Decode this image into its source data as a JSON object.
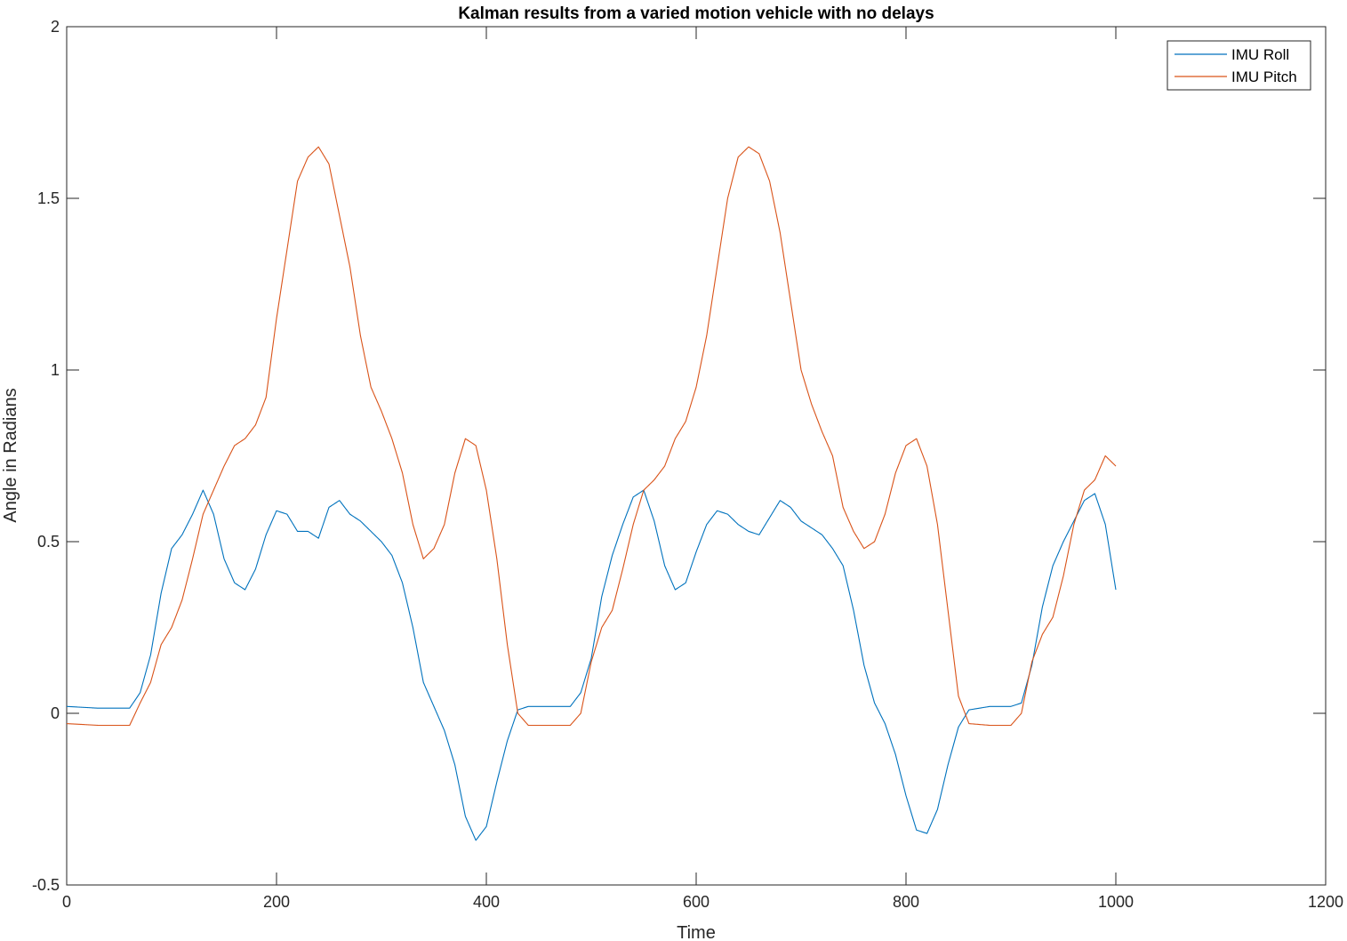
{
  "chart_data": {
    "type": "line",
    "title": "Kalman results from a varied motion vehicle with no delays",
    "xlabel": "Time",
    "ylabel": "Angle in Radians",
    "xlim": [
      0,
      1200
    ],
    "ylim": [
      -0.5,
      2
    ],
    "xticks": [
      "0",
      "200",
      "400",
      "600",
      "800",
      "1000",
      "1200"
    ],
    "yticks": [
      "-0.5",
      "0",
      "0.5",
      "1",
      "1.5",
      "2"
    ],
    "grid": false,
    "legend": "top-right",
    "series": [
      {
        "name": "IMU Roll",
        "color": "#0072BD",
        "points": [
          [
            0,
            0.02
          ],
          [
            30,
            0.015
          ],
          [
            60,
            0.015
          ],
          [
            70,
            0.06
          ],
          [
            80,
            0.17
          ],
          [
            90,
            0.35
          ],
          [
            100,
            0.48
          ],
          [
            110,
            0.52
          ],
          [
            120,
            0.58
          ],
          [
            130,
            0.65
          ],
          [
            140,
            0.58
          ],
          [
            150,
            0.45
          ],
          [
            160,
            0.38
          ],
          [
            170,
            0.36
          ],
          [
            180,
            0.42
          ],
          [
            190,
            0.52
          ],
          [
            200,
            0.59
          ],
          [
            210,
            0.58
          ],
          [
            220,
            0.53
          ],
          [
            230,
            0.53
          ],
          [
            240,
            0.51
          ],
          [
            250,
            0.6
          ],
          [
            260,
            0.62
          ],
          [
            270,
            0.58
          ],
          [
            280,
            0.56
          ],
          [
            290,
            0.53
          ],
          [
            300,
            0.5
          ],
          [
            310,
            0.46
          ],
          [
            320,
            0.38
          ],
          [
            330,
            0.25
          ],
          [
            340,
            0.09
          ],
          [
            350,
            0.02
          ],
          [
            360,
            -0.05
          ],
          [
            370,
            -0.15
          ],
          [
            380,
            -0.3
          ],
          [
            390,
            -0.37
          ],
          [
            400,
            -0.33
          ],
          [
            410,
            -0.2
          ],
          [
            420,
            -0.08
          ],
          [
            430,
            0.01
          ],
          [
            440,
            0.02
          ],
          [
            460,
            0.02
          ],
          [
            480,
            0.02
          ],
          [
            490,
            0.06
          ],
          [
            500,
            0.16
          ],
          [
            510,
            0.34
          ],
          [
            520,
            0.46
          ],
          [
            530,
            0.55
          ],
          [
            540,
            0.63
          ],
          [
            550,
            0.65
          ],
          [
            560,
            0.56
          ],
          [
            570,
            0.43
          ],
          [
            580,
            0.36
          ],
          [
            590,
            0.38
          ],
          [
            600,
            0.47
          ],
          [
            610,
            0.55
          ],
          [
            620,
            0.59
          ],
          [
            630,
            0.58
          ],
          [
            640,
            0.55
          ],
          [
            650,
            0.53
          ],
          [
            660,
            0.52
          ],
          [
            670,
            0.57
          ],
          [
            680,
            0.62
          ],
          [
            690,
            0.6
          ],
          [
            700,
            0.56
          ],
          [
            710,
            0.54
          ],
          [
            720,
            0.52
          ],
          [
            730,
            0.48
          ],
          [
            740,
            0.43
          ],
          [
            750,
            0.3
          ],
          [
            760,
            0.14
          ],
          [
            770,
            0.03
          ],
          [
            780,
            -0.03
          ],
          [
            790,
            -0.12
          ],
          [
            800,
            -0.24
          ],
          [
            810,
            -0.34
          ],
          [
            820,
            -0.35
          ],
          [
            830,
            -0.28
          ],
          [
            840,
            -0.15
          ],
          [
            850,
            -0.04
          ],
          [
            860,
            0.01
          ],
          [
            880,
            0.02
          ],
          [
            900,
            0.02
          ],
          [
            910,
            0.03
          ],
          [
            920,
            0.14
          ],
          [
            930,
            0.31
          ],
          [
            940,
            0.43
          ],
          [
            950,
            0.5
          ],
          [
            960,
            0.56
          ],
          [
            970,
            0.62
          ],
          [
            980,
            0.64
          ],
          [
            990,
            0.55
          ],
          [
            1000,
            0.36
          ]
        ]
      },
      {
        "name": "IMU Pitch",
        "color": "#D95319",
        "points": [
          [
            0,
            -0.03
          ],
          [
            30,
            -0.035
          ],
          [
            60,
            -0.035
          ],
          [
            70,
            0.03
          ],
          [
            80,
            0.09
          ],
          [
            90,
            0.2
          ],
          [
            100,
            0.25
          ],
          [
            110,
            0.33
          ],
          [
            120,
            0.45
          ],
          [
            130,
            0.58
          ],
          [
            140,
            0.65
          ],
          [
            150,
            0.72
          ],
          [
            160,
            0.78
          ],
          [
            170,
            0.8
          ],
          [
            180,
            0.84
          ],
          [
            190,
            0.92
          ],
          [
            200,
            1.15
          ],
          [
            210,
            1.35
          ],
          [
            220,
            1.55
          ],
          [
            230,
            1.62
          ],
          [
            240,
            1.65
          ],
          [
            250,
            1.6
          ],
          [
            260,
            1.45
          ],
          [
            270,
            1.3
          ],
          [
            280,
            1.1
          ],
          [
            290,
            0.95
          ],
          [
            300,
            0.88
          ],
          [
            310,
            0.8
          ],
          [
            320,
            0.7
          ],
          [
            330,
            0.55
          ],
          [
            340,
            0.45
          ],
          [
            350,
            0.48
          ],
          [
            360,
            0.55
          ],
          [
            370,
            0.7
          ],
          [
            380,
            0.8
          ],
          [
            390,
            0.78
          ],
          [
            400,
            0.65
          ],
          [
            410,
            0.45
          ],
          [
            420,
            0.2
          ],
          [
            430,
            0.0
          ],
          [
            440,
            -0.035
          ],
          [
            460,
            -0.035
          ],
          [
            480,
            -0.035
          ],
          [
            490,
            0.0
          ],
          [
            500,
            0.15
          ],
          [
            510,
            0.25
          ],
          [
            520,
            0.3
          ],
          [
            530,
            0.42
          ],
          [
            540,
            0.55
          ],
          [
            550,
            0.65
          ],
          [
            560,
            0.68
          ],
          [
            570,
            0.72
          ],
          [
            580,
            0.8
          ],
          [
            590,
            0.85
          ],
          [
            600,
            0.95
          ],
          [
            610,
            1.1
          ],
          [
            620,
            1.3
          ],
          [
            630,
            1.5
          ],
          [
            640,
            1.62
          ],
          [
            650,
            1.65
          ],
          [
            660,
            1.63
          ],
          [
            670,
            1.55
          ],
          [
            680,
            1.4
          ],
          [
            690,
            1.2
          ],
          [
            700,
            1.0
          ],
          [
            710,
            0.9
          ],
          [
            720,
            0.82
          ],
          [
            730,
            0.75
          ],
          [
            740,
            0.6
          ],
          [
            750,
            0.53
          ],
          [
            760,
            0.48
          ],
          [
            770,
            0.5
          ],
          [
            780,
            0.58
          ],
          [
            790,
            0.7
          ],
          [
            800,
            0.78
          ],
          [
            810,
            0.8
          ],
          [
            820,
            0.72
          ],
          [
            830,
            0.55
          ],
          [
            840,
            0.3
          ],
          [
            850,
            0.05
          ],
          [
            860,
            -0.03
          ],
          [
            880,
            -0.035
          ],
          [
            900,
            -0.035
          ],
          [
            910,
            0.0
          ],
          [
            920,
            0.15
          ],
          [
            930,
            0.23
          ],
          [
            940,
            0.28
          ],
          [
            950,
            0.4
          ],
          [
            960,
            0.55
          ],
          [
            970,
            0.65
          ],
          [
            980,
            0.68
          ],
          [
            990,
            0.75
          ],
          [
            1000,
            0.72
          ]
        ]
      }
    ]
  }
}
